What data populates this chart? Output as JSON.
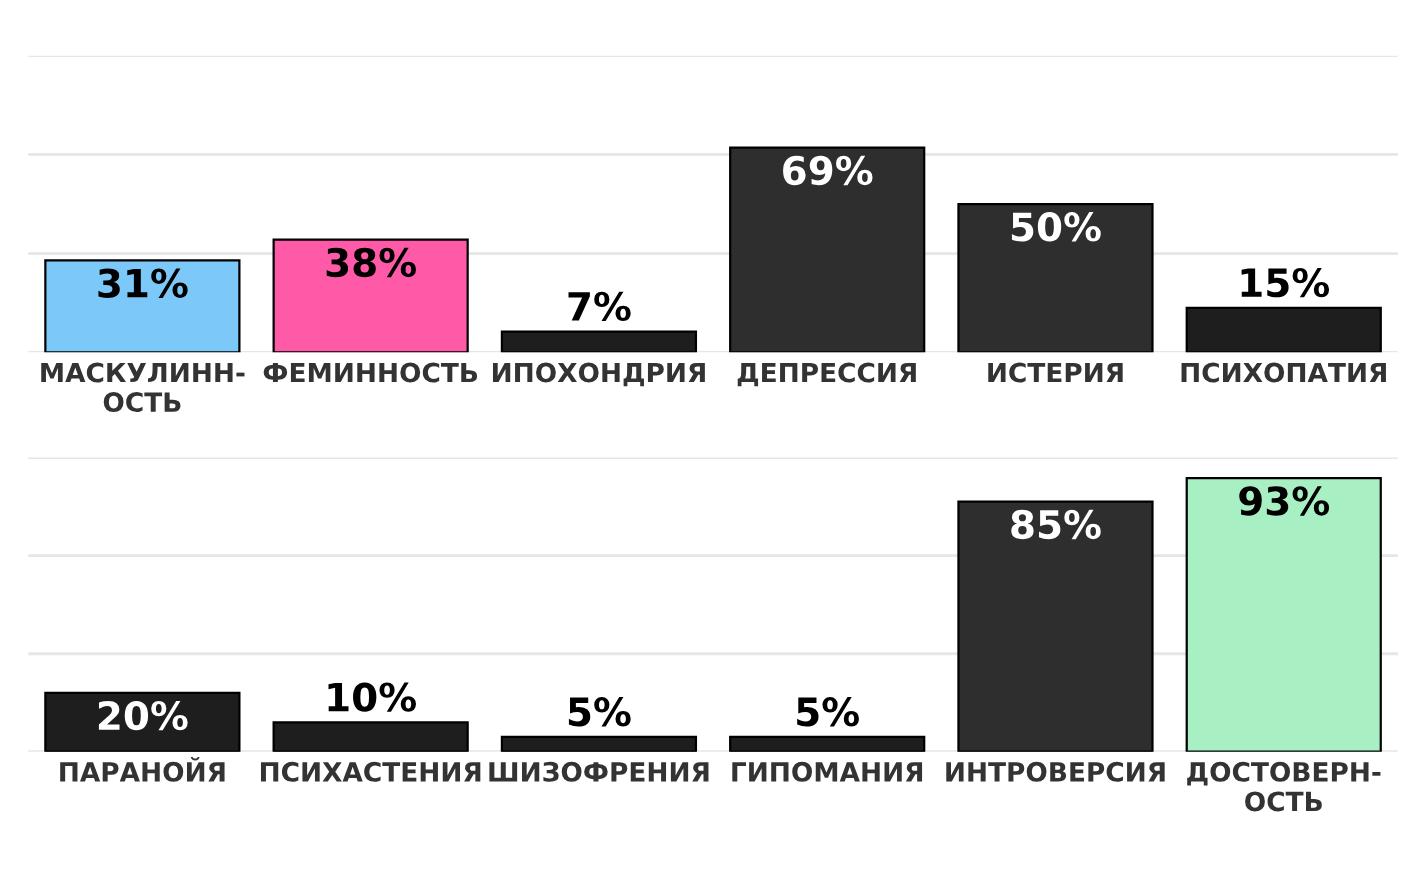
{
  "chart_data": [
    {
      "type": "bar",
      "categories": [
        "МАСКУЛИНН-\nОСТЬ",
        "ФЕМИННОСТЬ",
        "ИПОХОНДРИЯ",
        "ДЕПРЕССИЯ",
        "ИСТЕРИЯ",
        "ПСИХОПАТИЯ"
      ],
      "values": [
        31,
        38,
        7,
        69,
        50,
        15
      ],
      "colors": [
        "#7cc8f8",
        "#ff5aa8",
        "#1e1e1e",
        "#2e2e2e",
        "#2e2e2e",
        "#1e1e1e"
      ],
      "value_labels": [
        "31%",
        "38%",
        "7%",
        "69%",
        "50%",
        "15%"
      ],
      "ylim": [
        0,
        100
      ],
      "yticks": [
        {
          "value": 0,
          "label": null
        },
        {
          "value": 33.3,
          "label": null
        },
        {
          "value": 66.7,
          "label": null
        },
        {
          "value": 100,
          "label": null
        }
      ],
      "grid": "y",
      "tick_labels": "x"
    },
    {
      "type": "bar",
      "categories": [
        "ПАРАНОЙЯ",
        "ПСИХАСТЕНИЯ",
        "ШИЗОФРЕНИЯ",
        "ГИПОМАНИЯ",
        "ИНТРОВЕРСИЯ",
        "ДОСТОВЕРН-\nОСТЬ"
      ],
      "values": [
        20,
        10,
        5,
        5,
        85,
        93
      ],
      "colors": [
        "#1e1e1e",
        "#1e1e1e",
        "#1e1e1e",
        "#1e1e1e",
        "#2e2e2e",
        "#a8f0c4"
      ],
      "value_labels": [
        "20%",
        "10%",
        "5%",
        "5%",
        "85%",
        "93%"
      ],
      "ylim": [
        0,
        100
      ],
      "yticks": [
        {
          "value": 0,
          "label": null
        },
        {
          "value": 33.3,
          "label": null
        },
        {
          "value": 66.7,
          "label": null
        },
        {
          "value": 100,
          "label": null
        }
      ],
      "grid": "y",
      "tick_labels": "x"
    }
  ]
}
